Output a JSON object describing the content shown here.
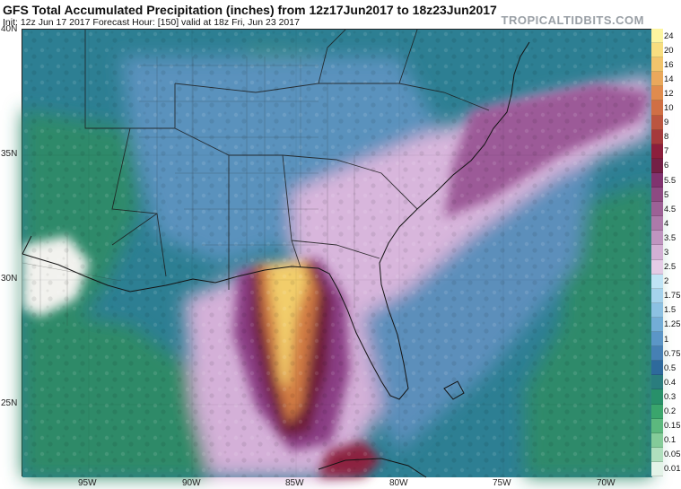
{
  "header": {
    "title": "GFS Total Accumulated Precipitation (inches) from 12z17Jun2017 to 18z23Jun2017",
    "subtitle": "Init: 12z Jun 17 2017   Forecast Hour: [150]   valid at 18z Fri, Jun 23 2017",
    "brand": "TROPICALTIDBITS.COM"
  },
  "map": {
    "lat_labels": [
      "40N",
      "35N",
      "30N",
      "25N"
    ],
    "lon_labels": [
      "95W",
      "90W",
      "85W",
      "80W",
      "75W",
      "70W"
    ],
    "colors": {
      "ocean_green": "#2f8a6a",
      "teal": "#2c7f94",
      "blue": "#5c93bd",
      "lavender": "#d9b7dc",
      "purple": "#8a3e84",
      "maroon": "#6e1a38",
      "orange": "#d17a43",
      "yellow": "#f2cd6a",
      "dry_white": "#f2f2ee"
    }
  },
  "colorbar": {
    "levels": [
      "24",
      "20",
      "16",
      "14",
      "12",
      "10",
      "9",
      "8",
      "7",
      "6",
      "5.5",
      "5",
      "4.5",
      "4",
      "3.5",
      "3",
      "2.5",
      "2",
      "1.75",
      "1.5",
      "1.25",
      "1",
      "0.75",
      "0.5",
      "0.4",
      "0.3",
      "0.2",
      "0.15",
      "0.1",
      "0.05",
      "0.01"
    ],
    "colors": [
      "#fdf5a0",
      "#f8de80",
      "#f2c46c",
      "#eaa85c",
      "#e08b4e",
      "#d06f45",
      "#bb5540",
      "#a53a3c",
      "#8c1f3c",
      "#742046",
      "#80336f",
      "#8d4a82",
      "#9c6196",
      "#ac7aaa",
      "#bf95c0",
      "#d2b0d4",
      "#e4cce6",
      "#bfe4f5",
      "#a6d3ec",
      "#8cc1e2",
      "#73add6",
      "#5b96c7",
      "#4680b4",
      "#2e6a9c",
      "#2a7d7e",
      "#28906a",
      "#3aa56c",
      "#5cb87e",
      "#84cb99",
      "#b0dfbe",
      "#e3f3e8"
    ]
  }
}
